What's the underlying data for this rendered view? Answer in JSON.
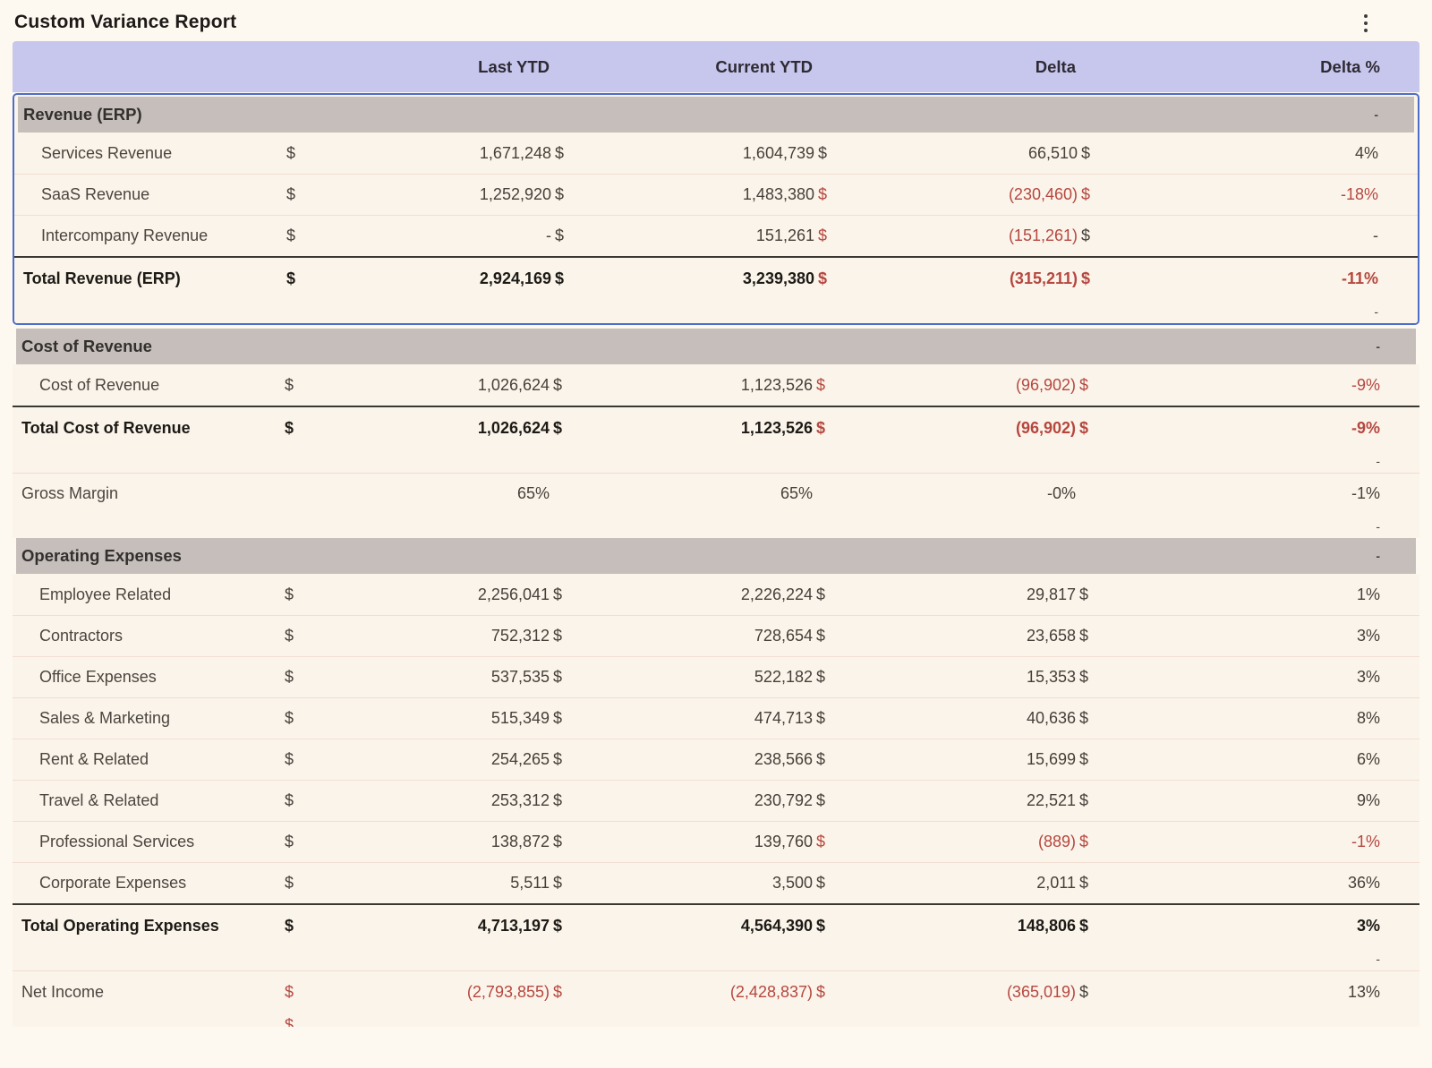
{
  "report": {
    "title": "Custom Variance Report",
    "menu_icon": "kebab-menu-icon",
    "columns": [
      "",
      "Last YTD",
      "Current YTD",
      "Delta",
      "Delta %"
    ],
    "colors": {
      "accent_blue": "#4e6dc8",
      "negative_red": "#b5473f",
      "header_lavender": "#c7c6ed",
      "section_gray": "#c5beba"
    },
    "rows": [
      {
        "type": "section",
        "label": "Revenue (ERP)",
        "trail": "-",
        "sel": true
      },
      {
        "type": "data",
        "indent": true,
        "label": "Services Revenue",
        "sel": true,
        "cells": [
          {
            "p": "$",
            "v": "1,671,248"
          },
          {
            "p": "$",
            "v": "1,604,739"
          },
          {
            "p": "$",
            "v": "66,510"
          },
          {
            "p": "$",
            "v": "4%"
          }
        ]
      },
      {
        "type": "data",
        "indent": true,
        "label": "SaaS Revenue",
        "sel": true,
        "cells": [
          {
            "p": "$",
            "v": "1,252,920"
          },
          {
            "p": "$",
            "v": "1,483,380"
          },
          {
            "p": "$",
            "v": "(230,460)",
            "neg": true
          },
          {
            "p": "$",
            "v": "-18%",
            "neg": true
          }
        ]
      },
      {
        "type": "data",
        "indent": true,
        "label": "Intercompany Revenue",
        "sel": true,
        "cells": [
          {
            "p": "$",
            "v": "-"
          },
          {
            "p": "$",
            "v": "151,261"
          },
          {
            "p": "$",
            "v": "(151,261)",
            "neg": true
          },
          {
            "p": "$",
            "v": "-"
          }
        ]
      },
      {
        "type": "total",
        "label": "Total Revenue (ERP)",
        "sel": true,
        "cells": [
          {
            "p": "$",
            "v": "2,924,169"
          },
          {
            "p": "$",
            "v": "3,239,380"
          },
          {
            "p": "$",
            "v": "(315,211)",
            "neg": true
          },
          {
            "p": "$",
            "v": "-11%",
            "neg": true
          }
        ]
      },
      {
        "type": "spacer",
        "trail": "-",
        "sel": true
      },
      {
        "type": "section",
        "label": "Cost of Revenue",
        "trail": "-"
      },
      {
        "type": "data",
        "indent": true,
        "label": "Cost of Revenue",
        "cells": [
          {
            "p": "$",
            "v": "1,026,624"
          },
          {
            "p": "$",
            "v": "1,123,526"
          },
          {
            "p": "$",
            "v": "(96,902)",
            "neg": true
          },
          {
            "p": "$",
            "v": "-9%",
            "neg": true
          }
        ]
      },
      {
        "type": "total",
        "label": "Total Cost of Revenue",
        "cells": [
          {
            "p": "$",
            "v": "1,026,624"
          },
          {
            "p": "$",
            "v": "1,123,526"
          },
          {
            "p": "$",
            "v": "(96,902)",
            "neg": true
          },
          {
            "p": "$",
            "v": "-9%",
            "neg": true
          }
        ]
      },
      {
        "type": "spacer",
        "trail": "-"
      },
      {
        "type": "data",
        "line": true,
        "label": "Gross Margin",
        "cells": [
          {
            "p": "",
            "v": "65%"
          },
          {
            "p": "",
            "v": "65%"
          },
          {
            "p": "",
            "v": "-0%"
          },
          {
            "p": "",
            "v": "-1%"
          }
        ]
      },
      {
        "type": "spacer",
        "trail": "-"
      },
      {
        "type": "section",
        "label": "Operating Expenses",
        "trail": "-"
      },
      {
        "type": "data",
        "indent": true,
        "label": "Employee Related",
        "cells": [
          {
            "p": "$",
            "v": "2,256,041"
          },
          {
            "p": "$",
            "v": "2,226,224"
          },
          {
            "p": "$",
            "v": "29,817"
          },
          {
            "p": "$",
            "v": "1%"
          }
        ]
      },
      {
        "type": "data",
        "indent": true,
        "label": "Contractors",
        "cells": [
          {
            "p": "$",
            "v": "752,312"
          },
          {
            "p": "$",
            "v": "728,654"
          },
          {
            "p": "$",
            "v": "23,658"
          },
          {
            "p": "$",
            "v": "3%"
          }
        ]
      },
      {
        "type": "data",
        "indent": true,
        "label": "Office Expenses",
        "cells": [
          {
            "p": "$",
            "v": "537,535"
          },
          {
            "p": "$",
            "v": "522,182"
          },
          {
            "p": "$",
            "v": "15,353"
          },
          {
            "p": "$",
            "v": "3%"
          }
        ]
      },
      {
        "type": "data",
        "indent": true,
        "label": "Sales & Marketing",
        "cells": [
          {
            "p": "$",
            "v": "515,349"
          },
          {
            "p": "$",
            "v": "474,713"
          },
          {
            "p": "$",
            "v": "40,636"
          },
          {
            "p": "$",
            "v": "8%"
          }
        ]
      },
      {
        "type": "data",
        "indent": true,
        "label": "Rent & Related",
        "cells": [
          {
            "p": "$",
            "v": "254,265"
          },
          {
            "p": "$",
            "v": "238,566"
          },
          {
            "p": "$",
            "v": "15,699"
          },
          {
            "p": "$",
            "v": "6%"
          }
        ]
      },
      {
        "type": "data",
        "indent": true,
        "label": "Travel & Related",
        "cells": [
          {
            "p": "$",
            "v": "253,312"
          },
          {
            "p": "$",
            "v": "230,792"
          },
          {
            "p": "$",
            "v": "22,521"
          },
          {
            "p": "$",
            "v": "9%"
          }
        ]
      },
      {
        "type": "data",
        "indent": true,
        "label": "Professional Services",
        "cells": [
          {
            "p": "$",
            "v": "138,872"
          },
          {
            "p": "$",
            "v": "139,760"
          },
          {
            "p": "$",
            "v": "(889)",
            "neg": true
          },
          {
            "p": "$",
            "v": "-1%",
            "neg": true
          }
        ]
      },
      {
        "type": "data",
        "indent": true,
        "label": "Corporate Expenses",
        "cells": [
          {
            "p": "$",
            "v": "5,511"
          },
          {
            "p": "$",
            "v": "3,500"
          },
          {
            "p": "$",
            "v": "2,011"
          },
          {
            "p": "$",
            "v": "36%"
          }
        ]
      },
      {
        "type": "total",
        "label": "Total Operating Expenses",
        "cells": [
          {
            "p": "$",
            "v": "4,713,197"
          },
          {
            "p": "$",
            "v": "4,564,390"
          },
          {
            "p": "$",
            "v": "148,806"
          },
          {
            "p": "$",
            "v": "3%"
          }
        ]
      },
      {
        "type": "spacer",
        "trail": "-"
      },
      {
        "type": "net",
        "line": true,
        "label": "Net Income",
        "cells": [
          {
            "p": "$",
            "v": "(2,793,855)",
            "neg": true
          },
          {
            "p": "$",
            "v": "(2,428,837)",
            "neg": true
          },
          {
            "p": "$",
            "v": "(365,019)",
            "neg": true
          },
          {
            "p": "$",
            "v": "13%"
          }
        ]
      },
      {
        "type": "cut",
        "cells": [
          {
            "p": "$",
            "v": ""
          }
        ]
      }
    ]
  }
}
